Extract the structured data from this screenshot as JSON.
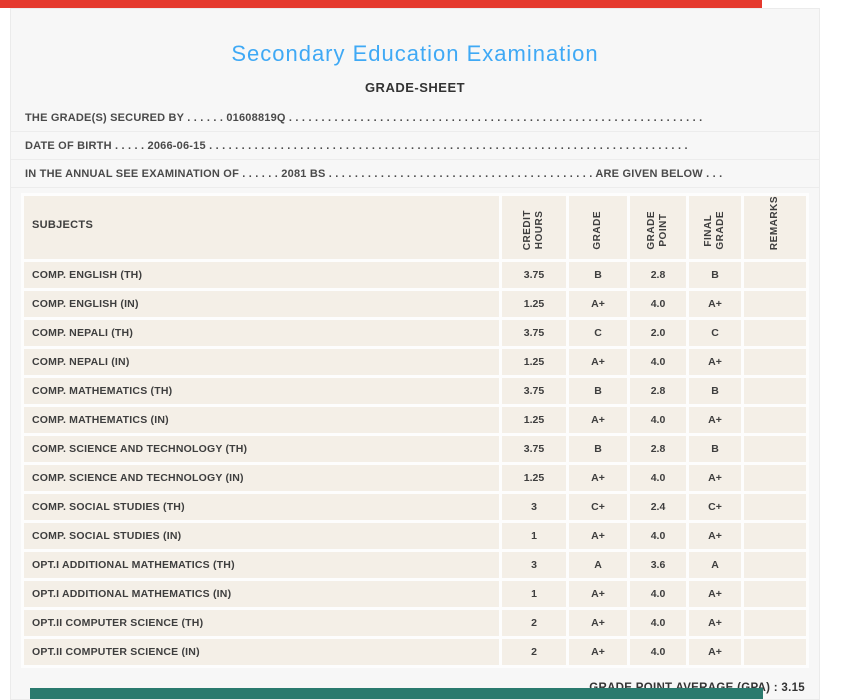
{
  "colors": {
    "top_bar_red": "#e5392e",
    "bottom_bar_teal": "#2a7a6e",
    "title_blue": "#3fa9f5",
    "cell_background": "#f4efe7"
  },
  "header": {
    "title": "Secondary Education Examination",
    "subtitle": "GRADE-SHEET"
  },
  "info_lines": [
    "THE GRADE(S) SECURED BY . . . . . . 01608819Q . . . . . . . . . . . . . . . . . . . . . . . . . . . . . . . . . . . . . . . . . . . . . . . . . . . . . . . . . . . . . . . .",
    "DATE OF BIRTH . . . . . 2066-06-15 . . . . . . . . . . . . . . . . . . . . . . . . . . . . . . . . . . . . . . . . . . . . . . . . . . . . . . . . . . . . . . . . . . . . . . . . . .",
    "IN THE ANNUAL SEE EXAMINATION OF . . . . . . 2081 BS . . . . . . . . . . . . . . . . . . . . . . . . . . . . . . . . . . . . . . . . . ARE GIVEN BELOW . . ."
  ],
  "table": {
    "columns": [
      "SUBJECTS",
      "CREDIT\nHOURS",
      "GRADE",
      "GRADE\nPOINT",
      "FINAL\nGRADE",
      "REMARKS"
    ],
    "rows": [
      {
        "subject": "COMP. ENGLISH (TH)",
        "credit_hours": "3.75",
        "grade": "B",
        "grade_point": "2.8",
        "final_grade": "B",
        "remarks": ""
      },
      {
        "subject": "COMP. ENGLISH (IN)",
        "credit_hours": "1.25",
        "grade": "A+",
        "grade_point": "4.0",
        "final_grade": "A+",
        "remarks": ""
      },
      {
        "subject": "COMP. NEPALI (TH)",
        "credit_hours": "3.75",
        "grade": "C",
        "grade_point": "2.0",
        "final_grade": "C",
        "remarks": ""
      },
      {
        "subject": "COMP. NEPALI (IN)",
        "credit_hours": "1.25",
        "grade": "A+",
        "grade_point": "4.0",
        "final_grade": "A+",
        "remarks": ""
      },
      {
        "subject": "COMP. MATHEMATICS (TH)",
        "credit_hours": "3.75",
        "grade": "B",
        "grade_point": "2.8",
        "final_grade": "B",
        "remarks": ""
      },
      {
        "subject": "COMP. MATHEMATICS (IN)",
        "credit_hours": "1.25",
        "grade": "A+",
        "grade_point": "4.0",
        "final_grade": "A+",
        "remarks": ""
      },
      {
        "subject": "COMP. SCIENCE AND TECHNOLOGY (TH)",
        "credit_hours": "3.75",
        "grade": "B",
        "grade_point": "2.8",
        "final_grade": "B",
        "remarks": ""
      },
      {
        "subject": "COMP. SCIENCE AND TECHNOLOGY (IN)",
        "credit_hours": "1.25",
        "grade": "A+",
        "grade_point": "4.0",
        "final_grade": "A+",
        "remarks": ""
      },
      {
        "subject": "COMP. SOCIAL STUDIES (TH)",
        "credit_hours": "3",
        "grade": "C+",
        "grade_point": "2.4",
        "final_grade": "C+",
        "remarks": ""
      },
      {
        "subject": "COMP. SOCIAL STUDIES (IN)",
        "credit_hours": "1",
        "grade": "A+",
        "grade_point": "4.0",
        "final_grade": "A+",
        "remarks": ""
      },
      {
        "subject": "OPT.I ADDITIONAL MATHEMATICS (TH)",
        "credit_hours": "3",
        "grade": "A",
        "grade_point": "3.6",
        "final_grade": "A",
        "remarks": ""
      },
      {
        "subject": "OPT.I ADDITIONAL MATHEMATICS (IN)",
        "credit_hours": "1",
        "grade": "A+",
        "grade_point": "4.0",
        "final_grade": "A+",
        "remarks": ""
      },
      {
        "subject": "OPT.II COMPUTER SCIENCE (TH)",
        "credit_hours": "2",
        "grade": "A+",
        "grade_point": "4.0",
        "final_grade": "A+",
        "remarks": ""
      },
      {
        "subject": "OPT.II COMPUTER SCIENCE (IN)",
        "credit_hours": "2",
        "grade": "A+",
        "grade_point": "4.0",
        "final_grade": "A+",
        "remarks": ""
      }
    ]
  },
  "footer": {
    "gpa_label": "GRADE POINT AVERAGE (GPA) : 3.15"
  }
}
